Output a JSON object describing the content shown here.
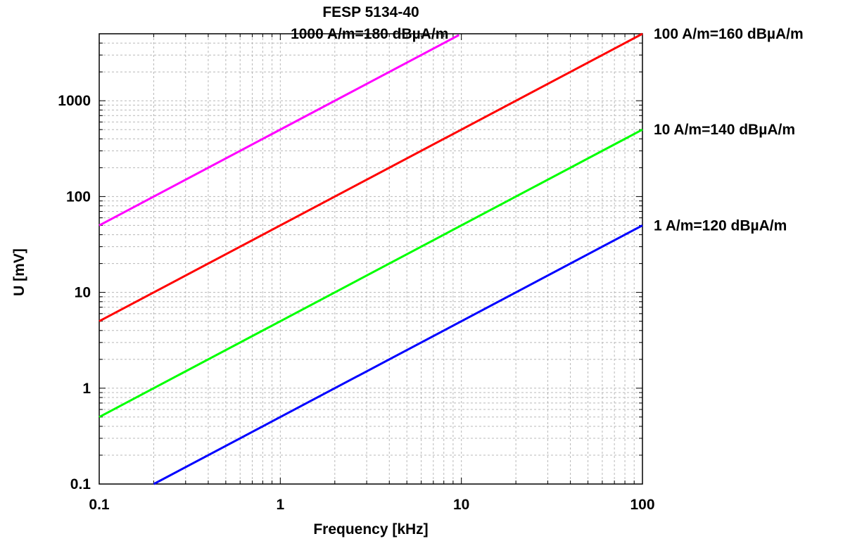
{
  "chart_data": {
    "type": "line",
    "title": "FESP 5134-40",
    "xlabel": "Frequency [kHz]",
    "ylabel": "U [mV]",
    "xscale": "log",
    "yscale": "log",
    "xlim": [
      0.1,
      100
    ],
    "ylim": [
      0.1,
      5000
    ],
    "grid": true,
    "x_ticks": [
      0.1,
      1,
      10,
      100
    ],
    "x_tick_labels": [
      "0.1",
      "1",
      "10",
      "100"
    ],
    "y_ticks": [
      0.1,
      1,
      10,
      100,
      1000
    ],
    "y_tick_labels": [
      "0.1",
      "1",
      "10",
      "100",
      "1000"
    ],
    "series": [
      {
        "name": "1000 A/m=180 dBµA/m",
        "color": "#ff00ff",
        "x": [
          0.1,
          9.7
        ],
        "y": [
          50,
          4850
        ]
      },
      {
        "name": "100 A/m=160 dBµA/m",
        "color": "#ff0000",
        "x": [
          0.1,
          100
        ],
        "y": [
          5,
          5000
        ]
      },
      {
        "name": "10 A/m=140 dBµA/m",
        "color": "#00ff00",
        "x": [
          0.1,
          100
        ],
        "y": [
          0.5,
          500
        ]
      },
      {
        "name": "1 A/m=120 dBµA/m",
        "color": "#0000ff",
        "x": [
          0.2,
          100
        ],
        "y": [
          0.1,
          50
        ]
      }
    ]
  }
}
